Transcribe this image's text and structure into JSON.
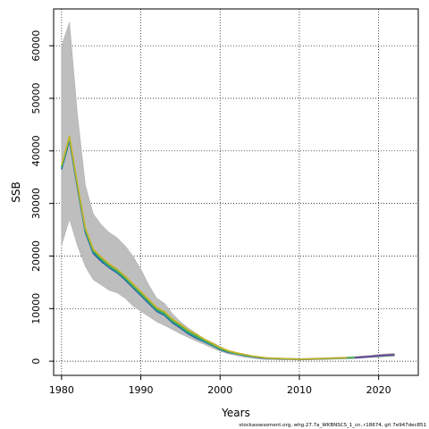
{
  "chart_data": {
    "type": "line",
    "xlabel": "Years",
    "ylabel": "SSB",
    "xlim": [
      1979,
      2025
    ],
    "ylim": [
      -2700,
      67000
    ],
    "grid": true,
    "grid_style": "dotted",
    "xticks": [
      1980,
      1990,
      2000,
      2010,
      2020
    ],
    "yticks": [
      0,
      10000,
      20000,
      30000,
      40000,
      50000,
      60000
    ],
    "band_color": "#bebebe",
    "band": {
      "name": "confidence interval",
      "x": [
        1980,
        1981,
        1982,
        1983,
        1984,
        1985,
        1986,
        1987,
        1988,
        1989,
        1990,
        1991,
        1992,
        1993,
        1994,
        1995,
        1996,
        1997,
        1998,
        1999,
        2000,
        2001,
        2002,
        2003,
        2004,
        2005,
        2006,
        2007,
        2008,
        2009,
        2010,
        2011,
        2012,
        2013,
        2014,
        2015,
        2016,
        2017,
        2018,
        2019,
        2020,
        2021,
        2022
      ],
      "lower": [
        22000,
        27000,
        22000,
        18000,
        15500,
        14500,
        13500,
        13000,
        12000,
        10500,
        9500,
        8500,
        7500,
        6800,
        6000,
        5200,
        4500,
        3800,
        3200,
        2500,
        1900,
        1400,
        1100,
        800,
        600,
        400,
        300,
        280,
        260,
        230,
        200,
        230,
        260,
        300,
        350,
        400,
        450,
        500,
        600,
        700,
        800,
        900,
        950
      ],
      "upper": [
        60000,
        64500,
        47000,
        33500,
        28000,
        26000,
        24500,
        23500,
        22000,
        20000,
        17500,
        14500,
        12000,
        11000,
        9000,
        7500,
        6300,
        5300,
        4300,
        3600,
        2800,
        2100,
        1700,
        1300,
        1000,
        800,
        700,
        650,
        600,
        550,
        500,
        550,
        600,
        650,
        700,
        750,
        800,
        900,
        1000,
        1100,
        1300,
        1400,
        1500
      ]
    },
    "x": [
      1980,
      1981,
      1982,
      1983,
      1984,
      1985,
      1986,
      1987,
      1988,
      1989,
      1990,
      1991,
      1992,
      1993,
      1994,
      1995,
      1996,
      1997,
      1998,
      1999,
      2000,
      2001,
      2002,
      2003,
      2004,
      2005,
      2006,
      2007,
      2008,
      2009,
      2010,
      2011,
      2012,
      2013,
      2014,
      2015,
      2016,
      2017,
      2018,
      2019,
      2020,
      2021,
      2022
    ],
    "series": [
      {
        "color": "#1f5aa6",
        "values": [
          36500,
          42000,
          33000,
          24500,
          20500,
          19000,
          17800,
          16800,
          15500,
          14000,
          12500,
          11000,
          9500,
          8700,
          7300,
          6300,
          5200,
          4400,
          3700,
          3000,
          2200,
          1700,
          1400,
          1100,
          850,
          650,
          520,
          470,
          430,
          380,
          330,
          360,
          400,
          450,
          500,
          550,
          600,
          650,
          750,
          850,
          950,
          1050,
          1150
        ]
      },
      {
        "color": "#2aa198",
        "values": [
          36800,
          42300,
          33300,
          24800,
          20800,
          19300,
          18000,
          17000,
          15700,
          14200,
          12700,
          11200,
          9700,
          8900,
          7500,
          6500,
          5400,
          4600,
          3800,
          3100,
          2300,
          1800,
          1450,
          1150,
          900,
          700,
          550,
          500,
          450,
          400,
          350,
          380,
          420,
          470,
          520,
          570,
          620,
          680,
          780,
          880,
          980,
          1080,
          1180
        ]
      },
      {
        "color": "#4daf4a",
        "values": [
          37000,
          42500,
          33500,
          25000,
          21000,
          19500,
          18200,
          17200,
          15900,
          14400,
          12900,
          11400,
          9900,
          9100,
          7700,
          6700,
          5600,
          4800,
          4000,
          3200,
          2400,
          1850,
          1500,
          1200,
          950,
          750,
          580,
          520,
          470,
          420,
          370,
          400,
          440,
          490,
          540,
          590,
          640,
          700,
          800,
          900,
          1000,
          1100,
          1200
        ]
      },
      {
        "color": "#c8b42a",
        "values": [
          37300,
          42800,
          33800,
          25300,
          21300,
          19800,
          18500,
          17500,
          16200,
          14700,
          13200,
          11700,
          10200,
          9400,
          8000,
          7000,
          5900,
          5100,
          4200,
          3400,
          2600,
          2000,
          1600,
          1300,
          1000,
          800,
          600,
          540,
          490,
          440,
          390,
          420,
          460,
          510,
          560,
          610,
          660,
          null,
          null,
          null,
          null,
          null,
          null
        ]
      },
      {
        "color": "#6a3d9a",
        "values": [
          null,
          null,
          null,
          null,
          null,
          null,
          null,
          null,
          null,
          null,
          null,
          null,
          null,
          null,
          null,
          null,
          null,
          null,
          null,
          null,
          null,
          null,
          null,
          null,
          null,
          null,
          null,
          null,
          null,
          null,
          null,
          null,
          null,
          null,
          null,
          null,
          null,
          650,
          780,
          900,
          1050,
          1150,
          1250
        ]
      }
    ],
    "footnote": "stockassessment.org, whg.27.7a_WKBNSCS_1_cn, r18674, git 7e947dec851"
  }
}
